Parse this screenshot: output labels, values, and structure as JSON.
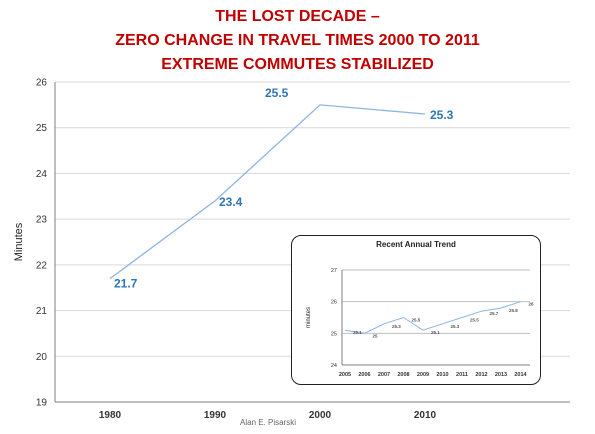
{
  "title_lines": [
    "THE LOST DECADE –",
    "ZERO CHANGE IN TRAVEL TIMES 2000 TO 2011",
    "EXTREME COMMUTES STABILIZED"
  ],
  "credit": "Alan E. Pisarski",
  "chart_data": [
    {
      "type": "line",
      "ylabel": "Minutes",
      "x": [
        "1980",
        "1990",
        "2000",
        "2010"
      ],
      "y_values": [
        21.7,
        23.4,
        25.5,
        25.3
      ],
      "data_labels": [
        "21.7",
        "23.4",
        "25.5",
        "25.3"
      ],
      "ylim": [
        19,
        26
      ],
      "yticks": [
        "19",
        "20",
        "21",
        "22",
        "23",
        "24",
        "25",
        "26"
      ],
      "grid": true,
      "colors": {
        "line": "#8eb4e3",
        "label": "#2e75b6",
        "grid": "#d9d9d9"
      }
    },
    {
      "type": "line",
      "title": "Recent Annual Trend",
      "ylabel": "minutes",
      "x": [
        "2005",
        "2006",
        "2007",
        "2008",
        "2009",
        "2010",
        "2011",
        "2012",
        "2013",
        "2014"
      ],
      "y_values": [
        25.1,
        25.0,
        25.3,
        25.5,
        25.1,
        25.3,
        25.5,
        25.7,
        25.8,
        26.0
      ],
      "data_labels": [
        "25.1",
        "25",
        "25.3",
        "25.5",
        "25.1",
        "25.3",
        "25.5",
        "25.7",
        "25.8",
        "26"
      ],
      "ylim": [
        24,
        27
      ],
      "yticks": [
        "24",
        "25",
        "26",
        "27"
      ],
      "grid": true,
      "colors": {
        "line": "#8eb4e3",
        "label": "#555555",
        "grid": "#bfbfbf"
      }
    }
  ]
}
